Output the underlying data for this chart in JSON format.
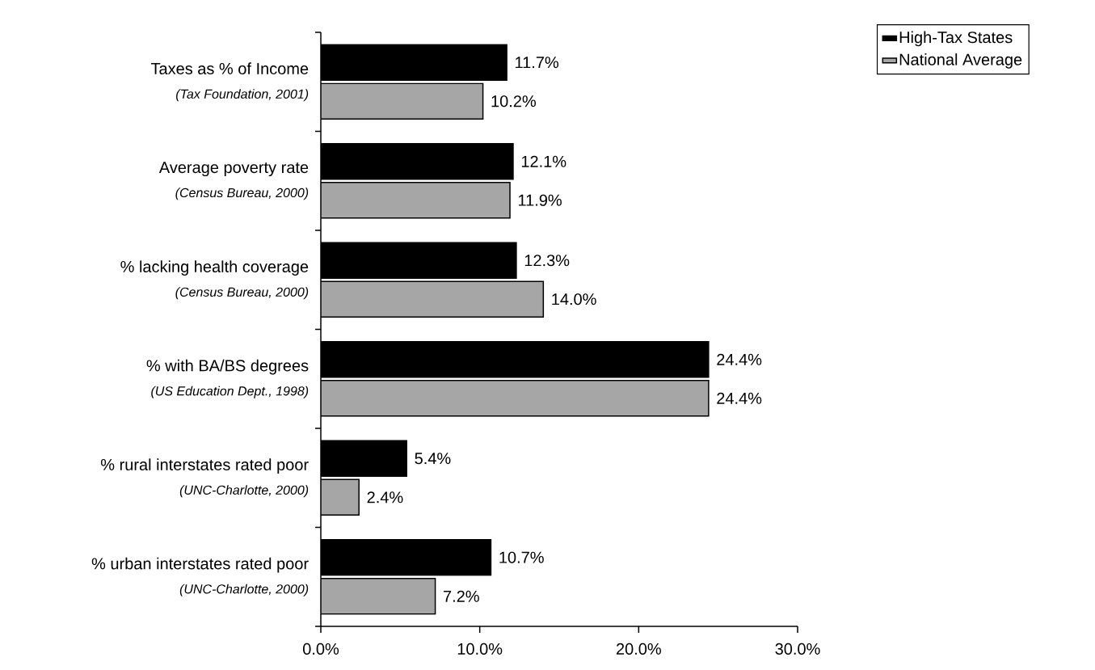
{
  "chart_data": {
    "type": "bar",
    "orientation": "horizontal",
    "categories": [
      "Taxes as % of Income",
      "Average poverty rate",
      "% lacking health coverage",
      "% with BA/BS degrees",
      "% rural interstates rated poor",
      "% urban interstates rated poor"
    ],
    "annotations": [
      "(Tax Foundation, 2001)",
      "(Census Bureau, 2000)",
      "(Census Bureau, 2000)",
      "(US Education Dept., 1998)",
      "(UNC-Charlotte, 2000)",
      "(UNC-Charlotte, 2000)"
    ],
    "series": [
      {
        "name": "High-Tax States",
        "color": "#000000",
        "values": [
          11.7,
          12.1,
          12.3,
          24.4,
          5.4,
          10.7
        ],
        "value_labels": [
          "11.7%",
          "12.1%",
          "12.3%",
          "24.4%",
          "5.4%",
          "10.7%"
        ]
      },
      {
        "name": "National Average",
        "color": "#a6a6a6",
        "values": [
          10.2,
          11.9,
          14.0,
          24.4,
          2.4,
          7.2
        ],
        "value_labels": [
          "10.2%",
          "11.9%",
          "14.0%",
          "24.4%",
          "2.4%",
          "7.2%"
        ]
      }
    ],
    "xlim": [
      0,
      30
    ],
    "xticks": [
      {
        "value": 0,
        "label": "0.0%"
      },
      {
        "value": 10,
        "label": "10.0%"
      },
      {
        "value": 20,
        "label": "20.0%"
      },
      {
        "value": 30,
        "label": "30.0%"
      }
    ],
    "legend": "top right"
  }
}
